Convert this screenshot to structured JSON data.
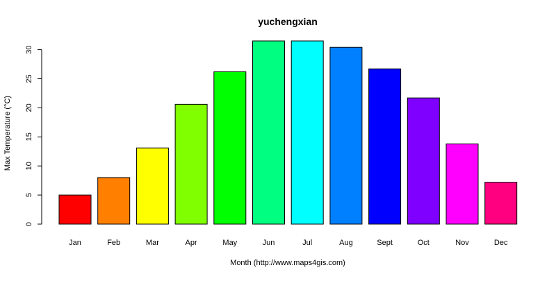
{
  "chart_data": {
    "type": "bar",
    "title": "yuchengxian",
    "xlabel": "Month (http://www.maps4gis.com)",
    "ylabel": "Max Temperature (°C)",
    "categories": [
      "Jan",
      "Feb",
      "Mar",
      "Apr",
      "May",
      "Jun",
      "Jul",
      "Aug",
      "Sept",
      "Oct",
      "Nov",
      "Dec"
    ],
    "values": [
      5.0,
      8.0,
      13.1,
      20.6,
      26.2,
      31.5,
      31.5,
      30.4,
      26.7,
      21.7,
      13.8,
      7.2
    ],
    "colors": [
      "#ff0000",
      "#ff8000",
      "#ffff00",
      "#80ff00",
      "#00ff00",
      "#00ff80",
      "#00ffff",
      "#0080ff",
      "#0000ff",
      "#8000ff",
      "#ff00ff",
      "#ff0080"
    ],
    "yticks": [
      0,
      5,
      10,
      15,
      20,
      25,
      30
    ],
    "ylim": [
      0,
      31.5
    ],
    "grid": false,
    "legend": "none"
  }
}
